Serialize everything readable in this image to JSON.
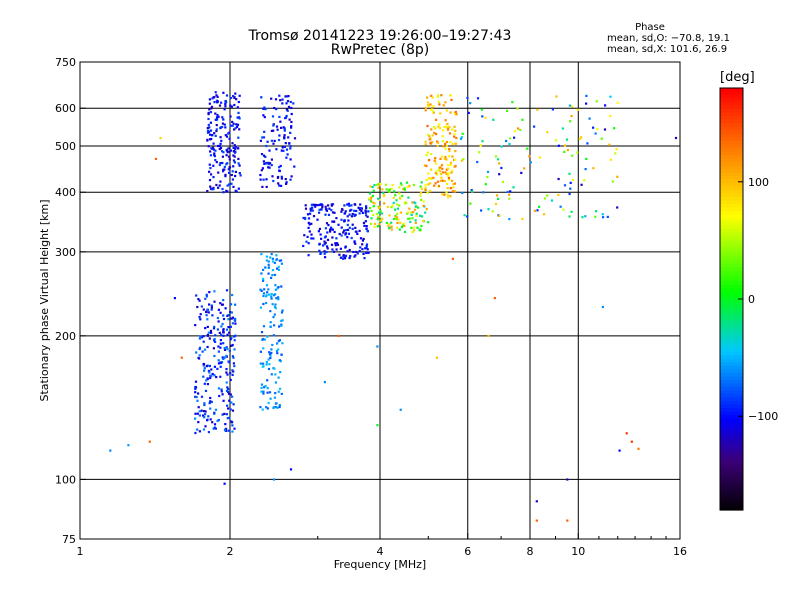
{
  "title_line1": "Tromsø 20141223 19:26:00–19:27:43",
  "title_line2": "RwPretec (8p)",
  "phase_box": {
    "heading": "Phase",
    "line1": "mean, sd,O: −70.8, 19.1",
    "line2": "mean, sd,X: 101.6, 26.9"
  },
  "colorbar": {
    "label": "[deg]",
    "ticks": [
      "100",
      "0",
      "−100"
    ],
    "tick_values": [
      100,
      0,
      -100
    ],
    "range": [
      -180,
      180
    ]
  },
  "chart_data": {
    "type": "scatter",
    "xlabel": "Frequency [MHz]",
    "ylabel": "Stationary phase Virtual Height [km]",
    "x_scale": "log",
    "y_scale": "log",
    "xlim": [
      1,
      16
    ],
    "ylim": [
      75,
      750
    ],
    "x_ticks": [
      1,
      2,
      4,
      6,
      8,
      10,
      16
    ],
    "x_tick_labels": [
      "1",
      "2",
      "4",
      "6",
      "8",
      "10",
      "16"
    ],
    "x_gridlines": [
      2,
      4,
      6,
      8,
      10
    ],
    "y_ticks": [
      75,
      100,
      200,
      300,
      400,
      500,
      600,
      750
    ],
    "y_tick_labels": [
      "75",
      "100",
      "200",
      "300",
      "400",
      "500",
      "600",
      "750"
    ],
    "y_gridlines": [
      100,
      200,
      300,
      400,
      500,
      600
    ],
    "grid": true,
    "color_encoding": "phase_deg",
    "clusters": [
      {
        "name": "o_E_lower",
        "x_range": [
          1.7,
          2.05
        ],
        "y_range": [
          125,
          250
        ],
        "phase_range": [
          -120,
          -60
        ],
        "count": 260
      },
      {
        "name": "o_E_upper",
        "x_range": [
          1.8,
          2.1
        ],
        "y_range": [
          400,
          650
        ],
        "phase_range": [
          -120,
          -80
        ],
        "count": 200
      },
      {
        "name": "x_E_lower",
        "x_range": [
          2.3,
          2.55
        ],
        "y_range": [
          140,
          300
        ],
        "phase_range": [
          -80,
          -40
        ],
        "count": 150
      },
      {
        "name": "x_E_upper",
        "x_range": [
          2.3,
          2.7
        ],
        "y_range": [
          410,
          640
        ],
        "phase_range": [
          -120,
          -80
        ],
        "count": 120
      },
      {
        "name": "o_F_trace",
        "x_range": [
          2.8,
          3.8
        ],
        "y_range": [
          290,
          380
        ],
        "phase_range": [
          -120,
          -80
        ],
        "count": 220
      },
      {
        "name": "x_F_trace",
        "x_range": [
          3.8,
          5.0
        ],
        "y_range": [
          330,
          420
        ],
        "phase_range": [
          -40,
          120
        ],
        "count": 160
      },
      {
        "name": "x_F_upper",
        "x_range": [
          4.9,
          5.7
        ],
        "y_range": [
          390,
          640
        ],
        "phase_range": [
          60,
          140
        ],
        "count": 170
      },
      {
        "name": "noise_high",
        "x_range": [
          5.8,
          12.0
        ],
        "y_range": [
          350,
          640
        ],
        "phase_range": [
          -120,
          120
        ],
        "count": 140
      }
    ],
    "points": [
      {
        "x": 1.15,
        "y": 115,
        "phase": -60
      },
      {
        "x": 1.25,
        "y": 118,
        "phase": -55
      },
      {
        "x": 1.38,
        "y": 120,
        "phase": 140
      },
      {
        "x": 1.42,
        "y": 470,
        "phase": 140
      },
      {
        "x": 1.45,
        "y": 520,
        "phase": 90
      },
      {
        "x": 1.55,
        "y": 240,
        "phase": -100
      },
      {
        "x": 1.6,
        "y": 180,
        "phase": 140
      },
      {
        "x": 2.45,
        "y": 100,
        "phase": -60
      },
      {
        "x": 2.65,
        "y": 105,
        "phase": -100
      },
      {
        "x": 1.95,
        "y": 98,
        "phase": -100
      },
      {
        "x": 3.1,
        "y": 160,
        "phase": -60
      },
      {
        "x": 3.3,
        "y": 200,
        "phase": 140
      },
      {
        "x": 3.95,
        "y": 190,
        "phase": -60
      },
      {
        "x": 3.95,
        "y": 130,
        "phase": 0
      },
      {
        "x": 4.4,
        "y": 140,
        "phase": -60
      },
      {
        "x": 5.2,
        "y": 180,
        "phase": 100
      },
      {
        "x": 5.6,
        "y": 290,
        "phase": 140
      },
      {
        "x": 6.6,
        "y": 200,
        "phase": 100
      },
      {
        "x": 6.8,
        "y": 240,
        "phase": 140
      },
      {
        "x": 8.25,
        "y": 90,
        "phase": -120
      },
      {
        "x": 8.25,
        "y": 82,
        "phase": 140
      },
      {
        "x": 9.5,
        "y": 100,
        "phase": -120
      },
      {
        "x": 9.5,
        "y": 82,
        "phase": 140
      },
      {
        "x": 11.2,
        "y": 230,
        "phase": -60
      },
      {
        "x": 12.5,
        "y": 125,
        "phase": 160
      },
      {
        "x": 12.8,
        "y": 120,
        "phase": 160
      },
      {
        "x": 13.2,
        "y": 116,
        "phase": 130
      },
      {
        "x": 12.1,
        "y": 115,
        "phase": -100
      },
      {
        "x": 15.7,
        "y": 520,
        "phase": -120
      }
    ]
  }
}
